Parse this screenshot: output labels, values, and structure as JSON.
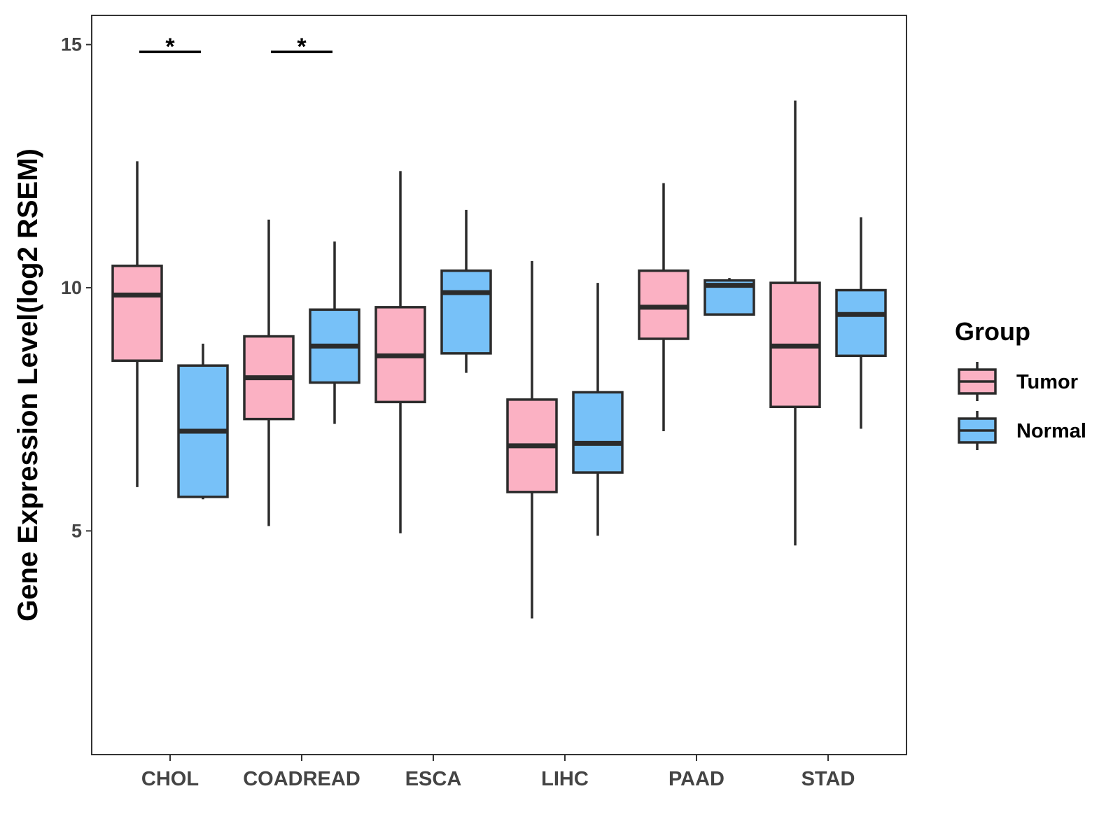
{
  "chart_data": {
    "type": "boxplot",
    "title": "",
    "xlabel": "",
    "ylabel": "Gene Expression Level(log2 RSEM)",
    "ylim": [
      0.4,
      15.6
    ],
    "yticks": [
      5,
      10,
      15
    ],
    "grid": false,
    "categories": [
      "CHOL",
      "COADREAD",
      "ESCA",
      "LIHC",
      "PAAD",
      "STAD"
    ],
    "legend": {
      "title": "Group",
      "position": "right",
      "entries": [
        {
          "name": "Tumor",
          "color": "#FBB1C3"
        },
        {
          "name": "Normal",
          "color": "#77C1F8"
        }
      ]
    },
    "series": [
      {
        "name": "Tumor",
        "color": "#FBB1C3",
        "boxes": [
          {
            "category": "CHOL",
            "min": 5.9,
            "q1": 8.5,
            "median": 9.85,
            "q3": 10.45,
            "max": 12.6
          },
          {
            "category": "COADREAD",
            "min": 5.1,
            "q1": 7.3,
            "median": 8.15,
            "q3": 9.0,
            "max": 11.4
          },
          {
            "category": "ESCA",
            "min": 4.95,
            "q1": 7.65,
            "median": 8.6,
            "q3": 9.6,
            "max": 12.4
          },
          {
            "category": "LIHC",
            "min": 3.2,
            "q1": 5.8,
            "median": 6.75,
            "q3": 7.7,
            "max": 10.55
          },
          {
            "category": "PAAD",
            "min": 7.05,
            "q1": 8.95,
            "median": 9.6,
            "q3": 10.35,
            "max": 12.15
          },
          {
            "category": "STAD",
            "min": 4.7,
            "q1": 7.55,
            "median": 8.8,
            "q3": 10.1,
            "max": 13.85
          }
        ]
      },
      {
        "name": "Normal",
        "color": "#77C1F8",
        "boxes": [
          {
            "category": "CHOL",
            "min": 5.65,
            "q1": 5.7,
            "median": 7.05,
            "q3": 8.4,
            "max": 8.85
          },
          {
            "category": "COADREAD",
            "min": 7.2,
            "q1": 8.05,
            "median": 8.8,
            "q3": 9.55,
            "max": 10.95
          },
          {
            "category": "ESCA",
            "min": 8.25,
            "q1": 8.65,
            "median": 9.9,
            "q3": 10.35,
            "max": 11.6
          },
          {
            "category": "LIHC",
            "min": 4.9,
            "q1": 6.2,
            "median": 6.8,
            "q3": 7.85,
            "max": 10.1
          },
          {
            "category": "PAAD",
            "min": 9.45,
            "q1": 9.45,
            "median": 10.05,
            "q3": 10.15,
            "max": 10.2
          },
          {
            "category": "STAD",
            "min": 7.1,
            "q1": 8.6,
            "median": 9.45,
            "q3": 9.95,
            "max": 11.45
          }
        ]
      }
    ],
    "annotations": [
      {
        "category": "CHOL",
        "label": "*",
        "y": 14.85
      },
      {
        "category": "COADREAD",
        "label": "*",
        "y": 14.85
      }
    ]
  }
}
